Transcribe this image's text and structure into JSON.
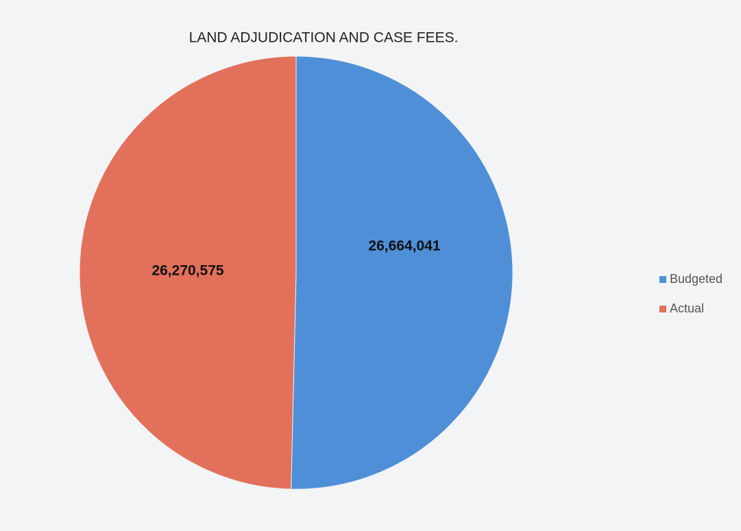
{
  "chart_data": {
    "type": "pie",
    "title": "LAND ADJUDICATION AND CASE FEES.",
    "categories": [
      "Budgeted",
      "Actual"
    ],
    "values": [
      26664041,
      26270575
    ],
    "value_labels": [
      "26,664,041",
      "26,270,575"
    ],
    "colors": [
      "#4f8fd8",
      "#e2705b"
    ],
    "legend": "right"
  }
}
